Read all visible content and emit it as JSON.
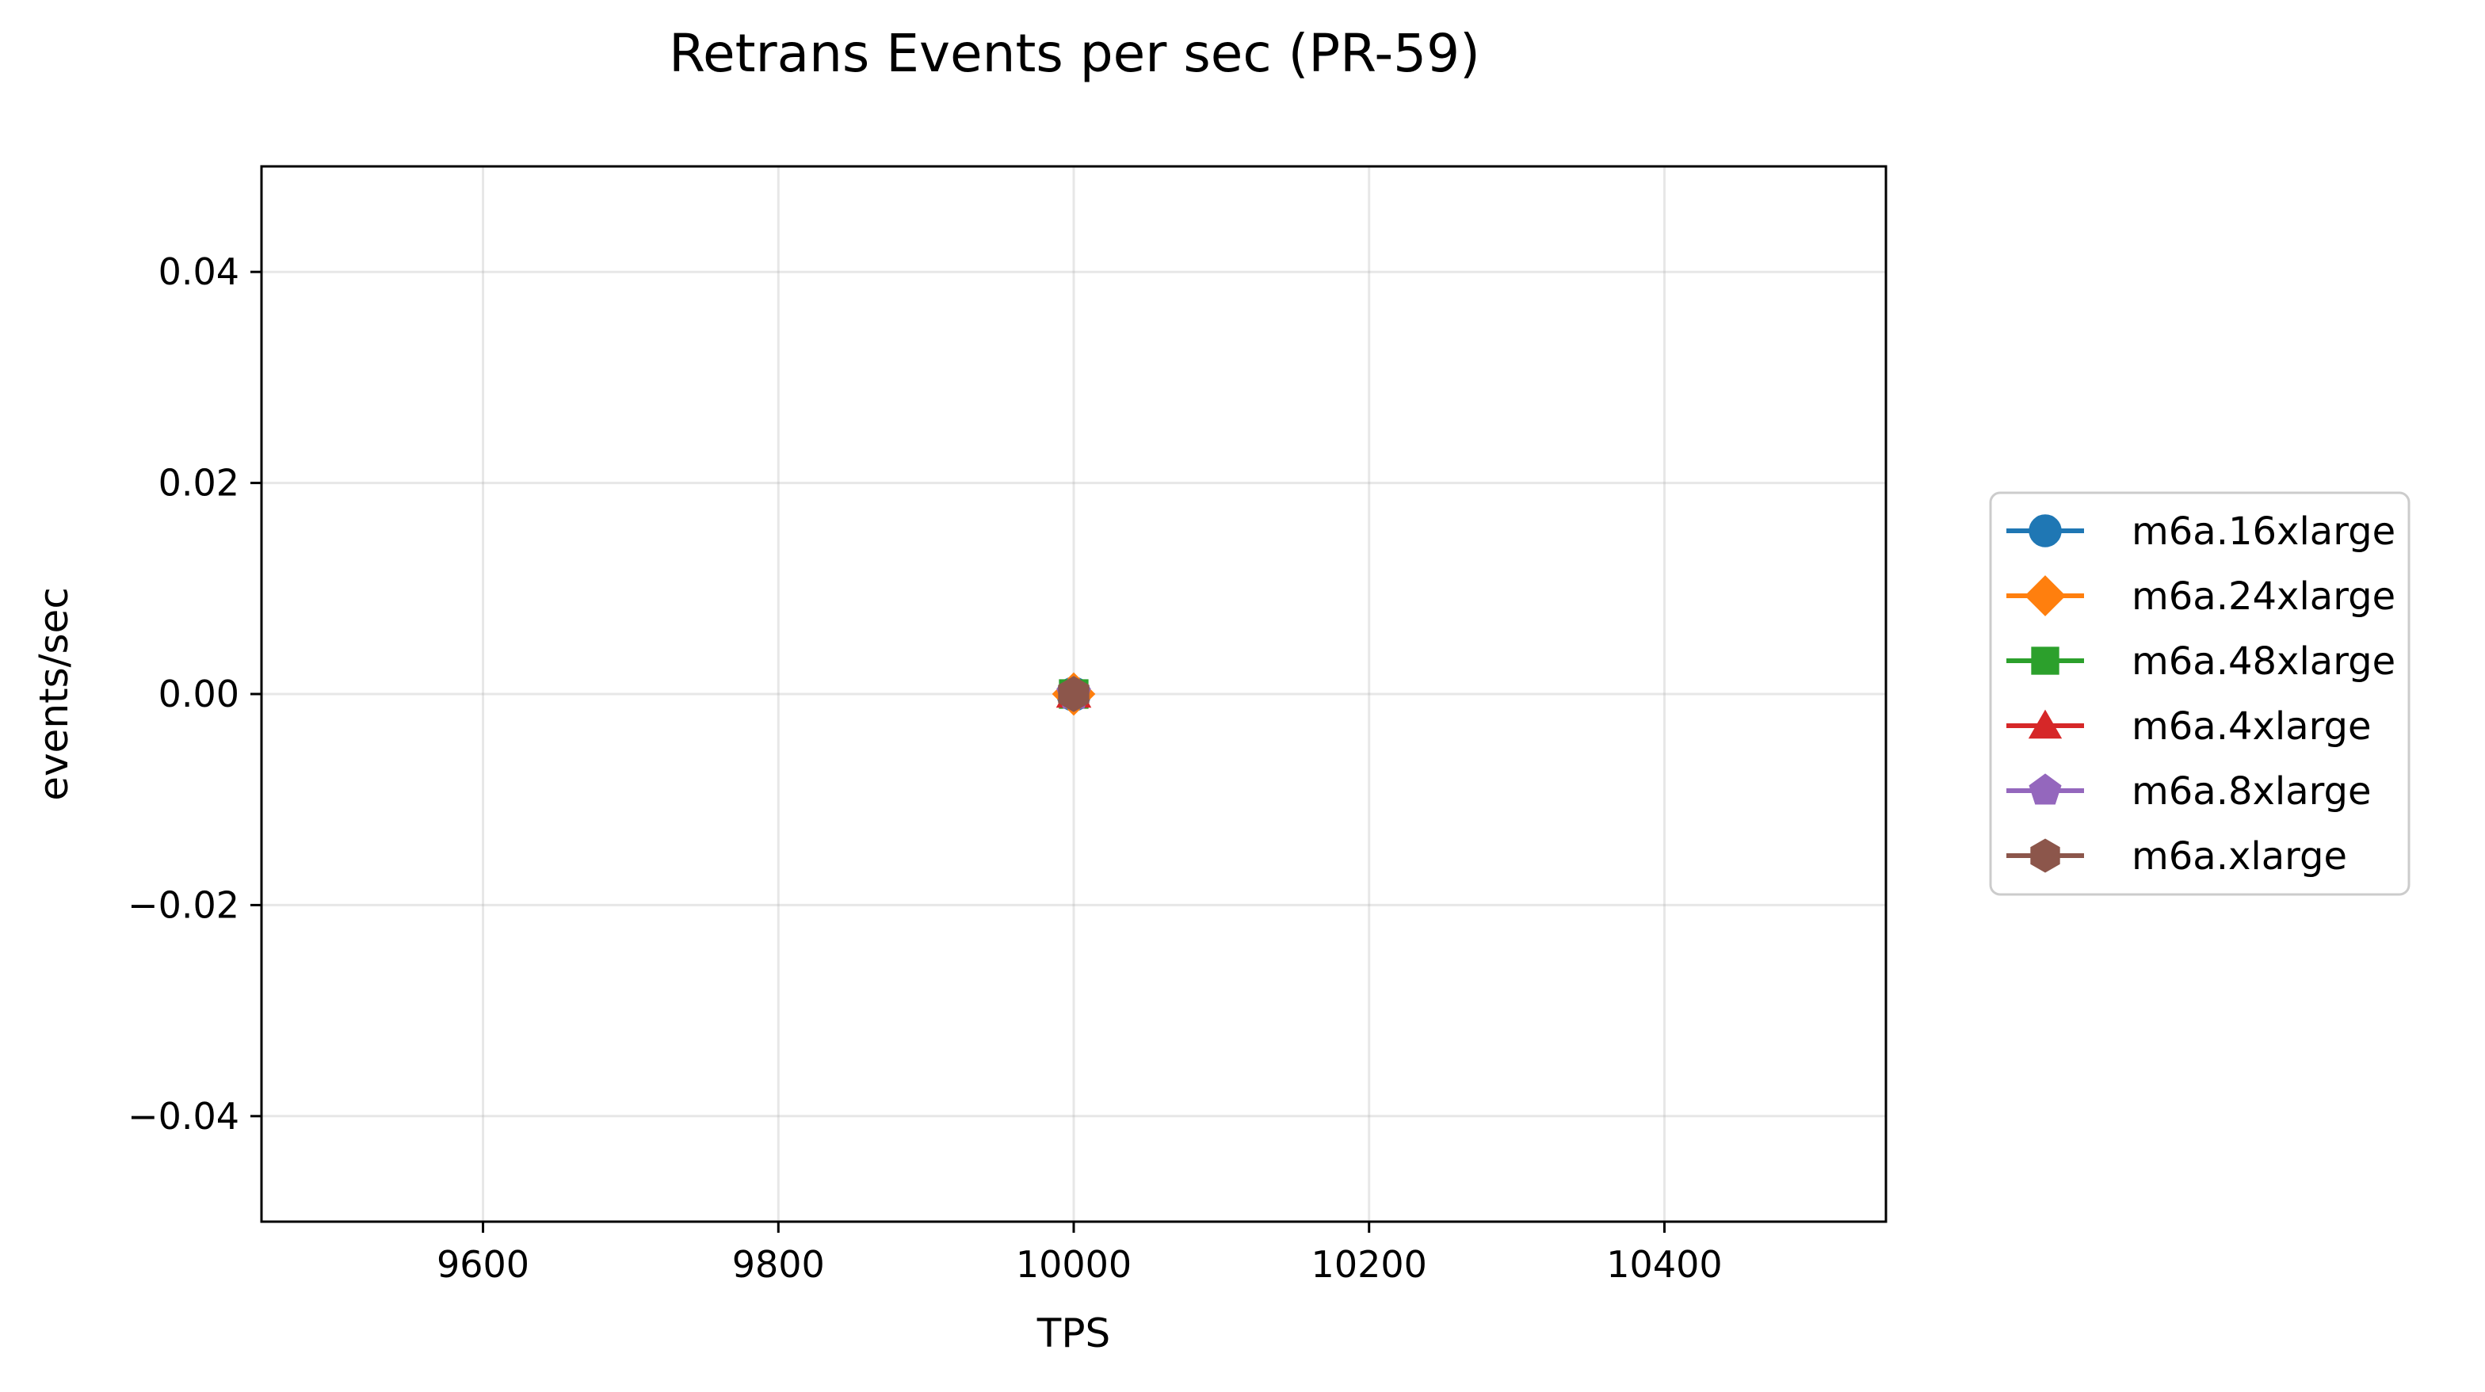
{
  "chart_data": {
    "type": "line",
    "title": "Retrans Events per sec (PR-59)",
    "xlabel": "TPS",
    "ylabel": "events/sec",
    "xlim": [
      9450,
      10550
    ],
    "ylim": [
      -0.05,
      0.05
    ],
    "x_ticks": [
      9600,
      9800,
      10000,
      10200,
      10400
    ],
    "x_tick_labels": [
      "9600",
      "9800",
      "10000",
      "10200",
      "10400"
    ],
    "y_ticks": [
      -0.04,
      -0.02,
      0.0,
      0.02,
      0.04
    ],
    "y_tick_labels": [
      "−0.04",
      "−0.02",
      "0.00",
      "0.02",
      "0.04"
    ],
    "grid": true,
    "legend_position": "right-outside",
    "series": [
      {
        "name": "m6a.16xlarge",
        "color": "#1f77b4",
        "marker": "circle",
        "x": [
          10000
        ],
        "y": [
          0.0
        ]
      },
      {
        "name": "m6a.24xlarge",
        "color": "#ff7f0e",
        "marker": "diamond",
        "x": [
          10000
        ],
        "y": [
          0.0
        ]
      },
      {
        "name": "m6a.48xlarge",
        "color": "#2ca02c",
        "marker": "square",
        "x": [
          10000
        ],
        "y": [
          0.0
        ]
      },
      {
        "name": "m6a.4xlarge",
        "color": "#d62728",
        "marker": "triangle",
        "x": [
          10000
        ],
        "y": [
          0.0
        ]
      },
      {
        "name": "m6a.8xlarge",
        "color": "#9467bd",
        "marker": "pentagon",
        "x": [
          10000
        ],
        "y": [
          0.0
        ]
      },
      {
        "name": "m6a.xlarge",
        "color": "#8c564b",
        "marker": "hexagon",
        "x": [
          10000
        ],
        "y": [
          0.0
        ]
      }
    ]
  }
}
